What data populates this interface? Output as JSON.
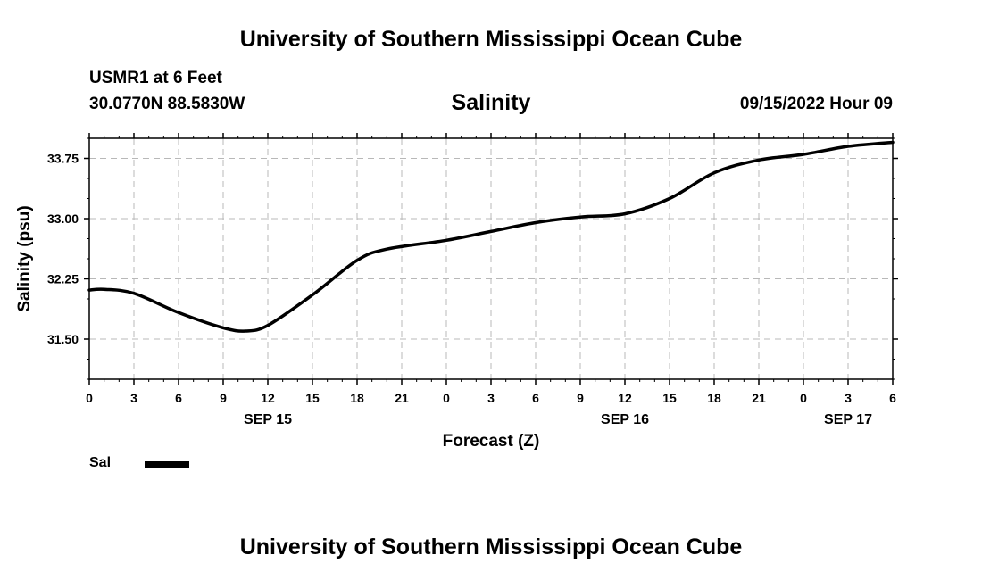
{
  "header": {
    "title": "University of Southern Mississippi Ocean Cube",
    "station": "USMR1 at 6 Feet",
    "coordinates": "30.0770N  88.5830W",
    "datetime": "09/15/2022 Hour 09"
  },
  "footer": {
    "title": "University of Southern Mississippi Ocean Cube"
  },
  "legend": {
    "label": "Sal",
    "color": "#000000"
  },
  "chart_data": {
    "type": "line",
    "title": "Salinity",
    "xlabel": "Forecast (Z)",
    "ylabel": "Salinity (psu)",
    "xlim": [
      0,
      54
    ],
    "ylim": [
      31.0,
      34.0
    ],
    "grid": true,
    "x_tick_values": [
      0,
      3,
      6,
      9,
      12,
      15,
      18,
      21,
      24,
      27,
      30,
      33,
      36,
      39,
      42,
      45,
      48,
      51,
      54
    ],
    "x_tick_labels": [
      "0",
      "3",
      "6",
      "9",
      "12",
      "15",
      "18",
      "21",
      "0",
      "3",
      "6",
      "9",
      "12",
      "15",
      "18",
      "21",
      "0",
      "3",
      "6"
    ],
    "y_tick_values": [
      31.5,
      32.25,
      33.0,
      33.75
    ],
    "y_tick_labels": [
      "31.50",
      "32.25",
      "33.00",
      "33.75"
    ],
    "date_labels": [
      {
        "label": "SEP 15",
        "x": 12
      },
      {
        "label": "SEP 16",
        "x": 36
      },
      {
        "label": "SEP 17",
        "x": 51
      }
    ],
    "series": [
      {
        "name": "Sal",
        "color": "#000000",
        "x": [
          0,
          1,
          3,
          6,
          9,
          10.5,
          12,
          15,
          18,
          20,
          24,
          27,
          30,
          33,
          36,
          39,
          42,
          45,
          48,
          51,
          54
        ],
        "values": [
          32.11,
          32.12,
          32.07,
          31.83,
          31.64,
          31.6,
          31.67,
          32.05,
          32.48,
          32.62,
          32.73,
          32.84,
          32.95,
          33.02,
          33.06,
          33.25,
          33.57,
          33.73,
          33.8,
          33.9,
          33.95
        ]
      }
    ]
  }
}
